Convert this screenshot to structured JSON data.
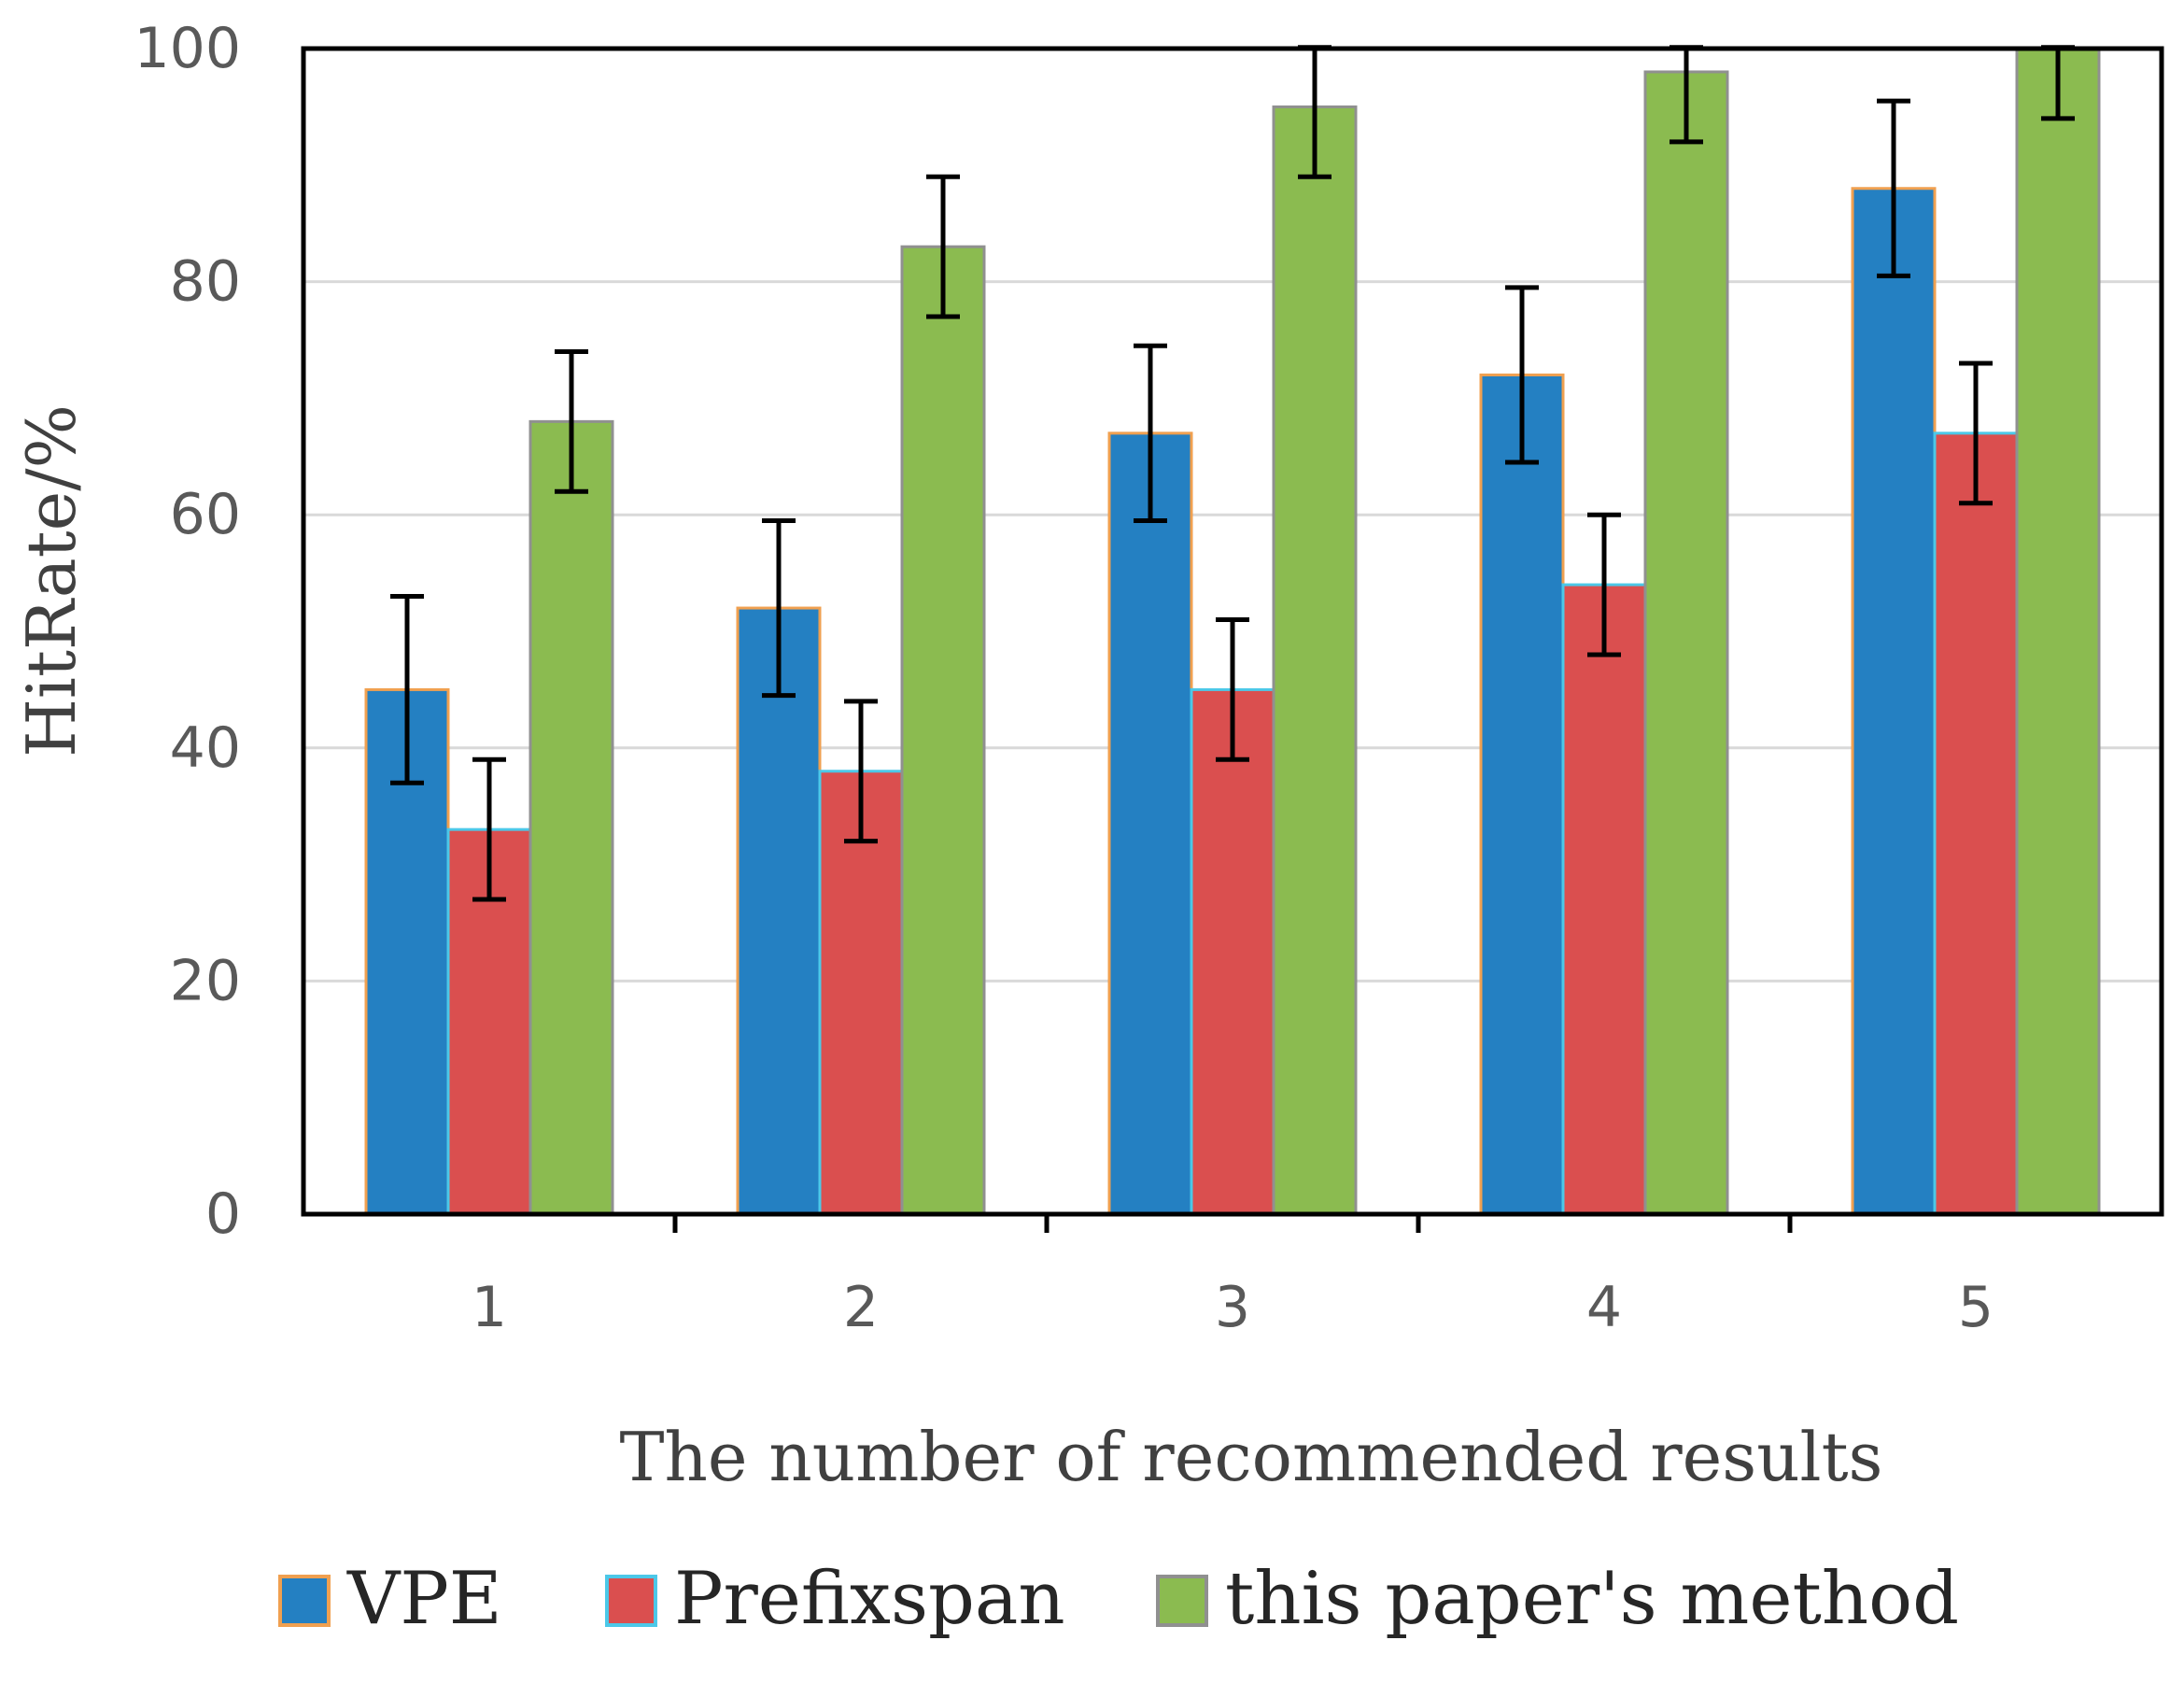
{
  "chart_data": {
    "type": "bar",
    "title": "",
    "xlabel": "The number of recommended results",
    "ylabel": "HitRate/%",
    "ylim": [
      0,
      100
    ],
    "yticks": [
      "0",
      "20",
      "40",
      "60",
      "80",
      "100"
    ],
    "grid": true,
    "legend_position": "bottom",
    "categories": [
      "1",
      "2",
      "3",
      "4",
      "5"
    ],
    "series": [
      {
        "name": "VPE",
        "color": "#2480c2",
        "edge_color": "#f0a050",
        "values": [
          45,
          52,
          67,
          72,
          88
        ],
        "error": [
          8,
          7.5,
          7.5,
          7.5,
          7.5
        ]
      },
      {
        "name": "Prefixspan",
        "color": "#da4f4f",
        "edge_color": "#4cc8e8",
        "values": [
          33,
          38,
          45,
          54,
          67
        ],
        "error": [
          6,
          6,
          6,
          6,
          6
        ]
      },
      {
        "name": "this paper's method",
        "color": "#8bbb50",
        "edge_color": "#909090",
        "values": [
          68,
          83,
          95,
          98,
          100
        ],
        "error": [
          6,
          6,
          6,
          6,
          6
        ]
      }
    ]
  }
}
